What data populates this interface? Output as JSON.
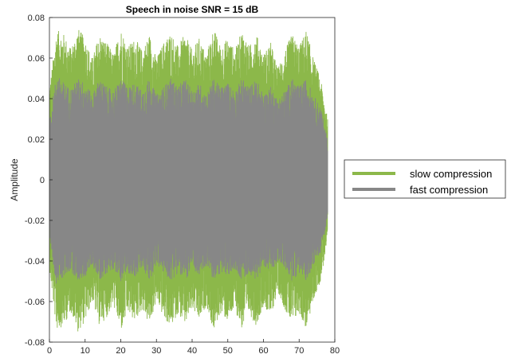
{
  "chart_data": {
    "type": "line",
    "title": "Speech in noise SNR = 15 dB",
    "xlabel": "",
    "ylabel": "Amplitude",
    "xlim": [
      0,
      80
    ],
    "ylim": [
      -0.08,
      0.08
    ],
    "xticks": [
      "0",
      "10",
      "20",
      "30",
      "40",
      "50",
      "60",
      "70",
      "80"
    ],
    "yticks": [
      "0.08",
      "0.06",
      "0.04",
      "0.02",
      "0",
      "-0.02",
      "-0.04",
      "-0.06",
      "-0.08"
    ],
    "legend_position": "right",
    "data_x_range": [
      0,
      78
    ],
    "series": [
      {
        "name": "slow compression",
        "color": "#8cb84a",
        "peak_amplitude_by_time": [
          [
            0,
            0.045
          ],
          [
            2,
            0.074
          ],
          [
            4,
            0.072
          ],
          [
            6,
            0.065
          ],
          [
            8,
            0.075
          ],
          [
            10,
            0.07
          ],
          [
            12,
            0.06
          ],
          [
            14,
            0.072
          ],
          [
            16,
            0.068
          ],
          [
            18,
            0.062
          ],
          [
            20,
            0.075
          ],
          [
            22,
            0.066
          ],
          [
            24,
            0.07
          ],
          [
            26,
            0.064
          ],
          [
            28,
            0.072
          ],
          [
            30,
            0.06
          ],
          [
            32,
            0.068
          ],
          [
            34,
            0.073
          ],
          [
            36,
            0.066
          ],
          [
            38,
            0.072
          ],
          [
            40,
            0.064
          ],
          [
            42,
            0.07
          ],
          [
            44,
            0.062
          ],
          [
            46,
            0.075
          ],
          [
            48,
            0.066
          ],
          [
            50,
            0.07
          ],
          [
            52,
            0.064
          ],
          [
            54,
            0.074
          ],
          [
            56,
            0.066
          ],
          [
            58,
            0.072
          ],
          [
            60,
            0.062
          ],
          [
            62,
            0.068
          ],
          [
            64,
            0.055
          ],
          [
            66,
            0.064
          ],
          [
            68,
            0.072
          ],
          [
            70,
            0.066
          ],
          [
            72,
            0.074
          ],
          [
            74,
            0.06
          ],
          [
            76,
            0.05
          ],
          [
            78,
            0.03
          ]
        ]
      },
      {
        "name": "fast compression",
        "color": "#878787",
        "peak_amplitude_by_time": [
          [
            0,
            0.03
          ],
          [
            2,
            0.052
          ],
          [
            4,
            0.048
          ],
          [
            6,
            0.045
          ],
          [
            8,
            0.05
          ],
          [
            10,
            0.048
          ],
          [
            12,
            0.042
          ],
          [
            14,
            0.05
          ],
          [
            16,
            0.046
          ],
          [
            18,
            0.044
          ],
          [
            20,
            0.05
          ],
          [
            22,
            0.046
          ],
          [
            24,
            0.048
          ],
          [
            26,
            0.044
          ],
          [
            28,
            0.05
          ],
          [
            30,
            0.042
          ],
          [
            32,
            0.046
          ],
          [
            34,
            0.05
          ],
          [
            36,
            0.046
          ],
          [
            38,
            0.05
          ],
          [
            40,
            0.044
          ],
          [
            42,
            0.048
          ],
          [
            44,
            0.042
          ],
          [
            46,
            0.05
          ],
          [
            48,
            0.046
          ],
          [
            50,
            0.048
          ],
          [
            52,
            0.044
          ],
          [
            54,
            0.05
          ],
          [
            56,
            0.046
          ],
          [
            58,
            0.05
          ],
          [
            60,
            0.042
          ],
          [
            62,
            0.046
          ],
          [
            64,
            0.04
          ],
          [
            66,
            0.044
          ],
          [
            68,
            0.05
          ],
          [
            70,
            0.046
          ],
          [
            72,
            0.05
          ],
          [
            74,
            0.042
          ],
          [
            76,
            0.036
          ],
          [
            78,
            0.02
          ]
        ]
      }
    ]
  }
}
